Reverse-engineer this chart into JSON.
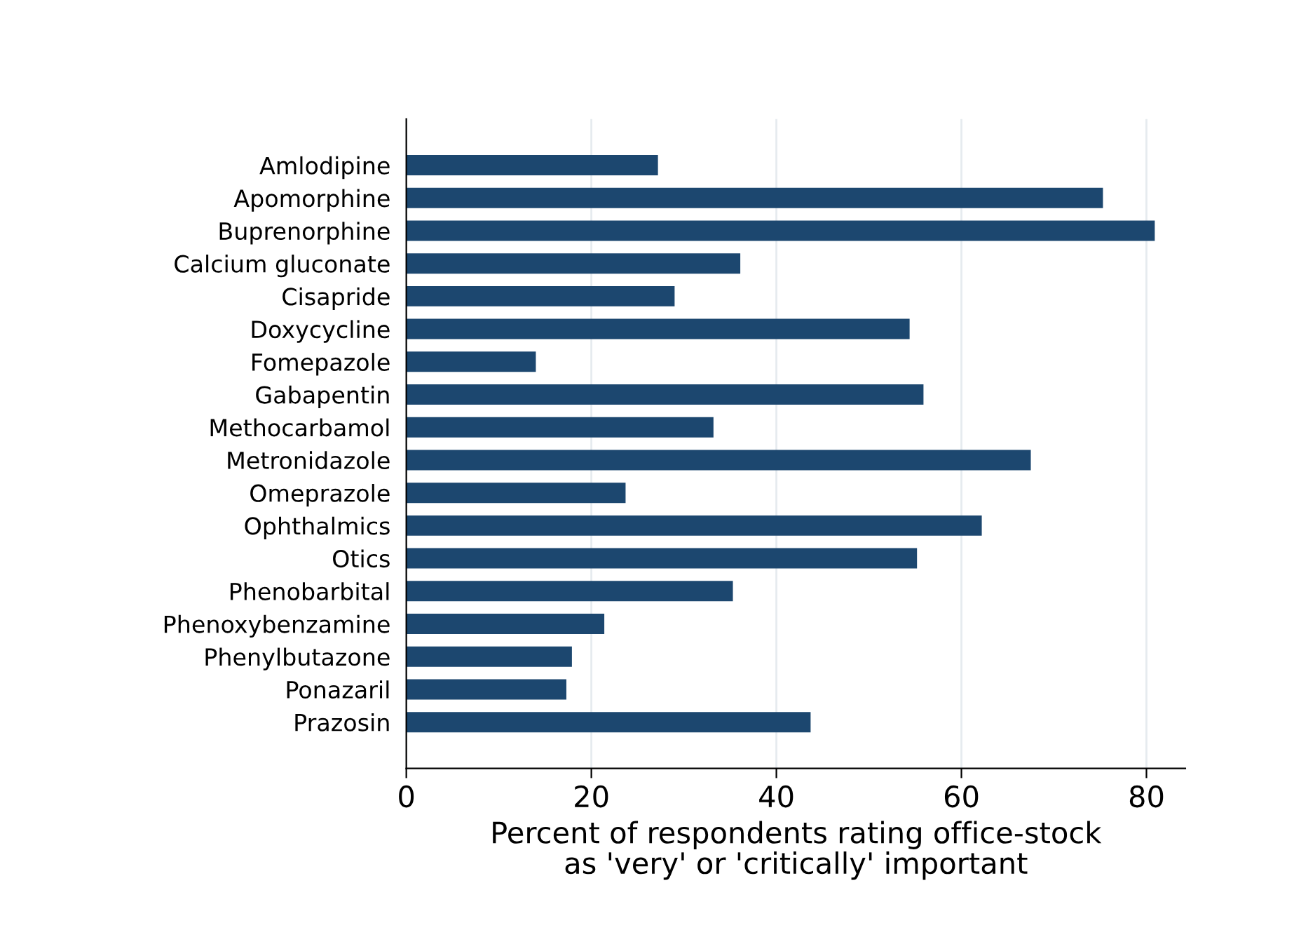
{
  "chart_data": {
    "type": "bar",
    "orientation": "horizontal",
    "categories": [
      "Amlodipine",
      "Apomorphine",
      "Buprenorphine",
      "Calcium gluconate",
      "Cisapride",
      "Doxycycline",
      "Fomepazole",
      "Gabapentin",
      "Methocarbamol",
      "Metronidazole",
      "Omeprazole",
      "Ophthalmics",
      "Otics",
      "Phenobarbital",
      "Phenoxybenzamine",
      "Phenylbutazone",
      "Ponazaril",
      "Prazosin"
    ],
    "values": [
      27.2,
      75.3,
      80.9,
      36.1,
      29.0,
      54.4,
      14.0,
      55.9,
      33.2,
      67.5,
      23.7,
      62.2,
      55.2,
      35.3,
      21.4,
      17.9,
      17.3,
      43.7
    ],
    "color": "#1c476f",
    "xlim": [
      0,
      84.2
    ],
    "xticks": [
      0,
      20,
      40,
      60,
      80
    ],
    "xlabel": "Percent of respondents rating office-stock\nas 'very' or 'critically' important",
    "grid": "x"
  }
}
